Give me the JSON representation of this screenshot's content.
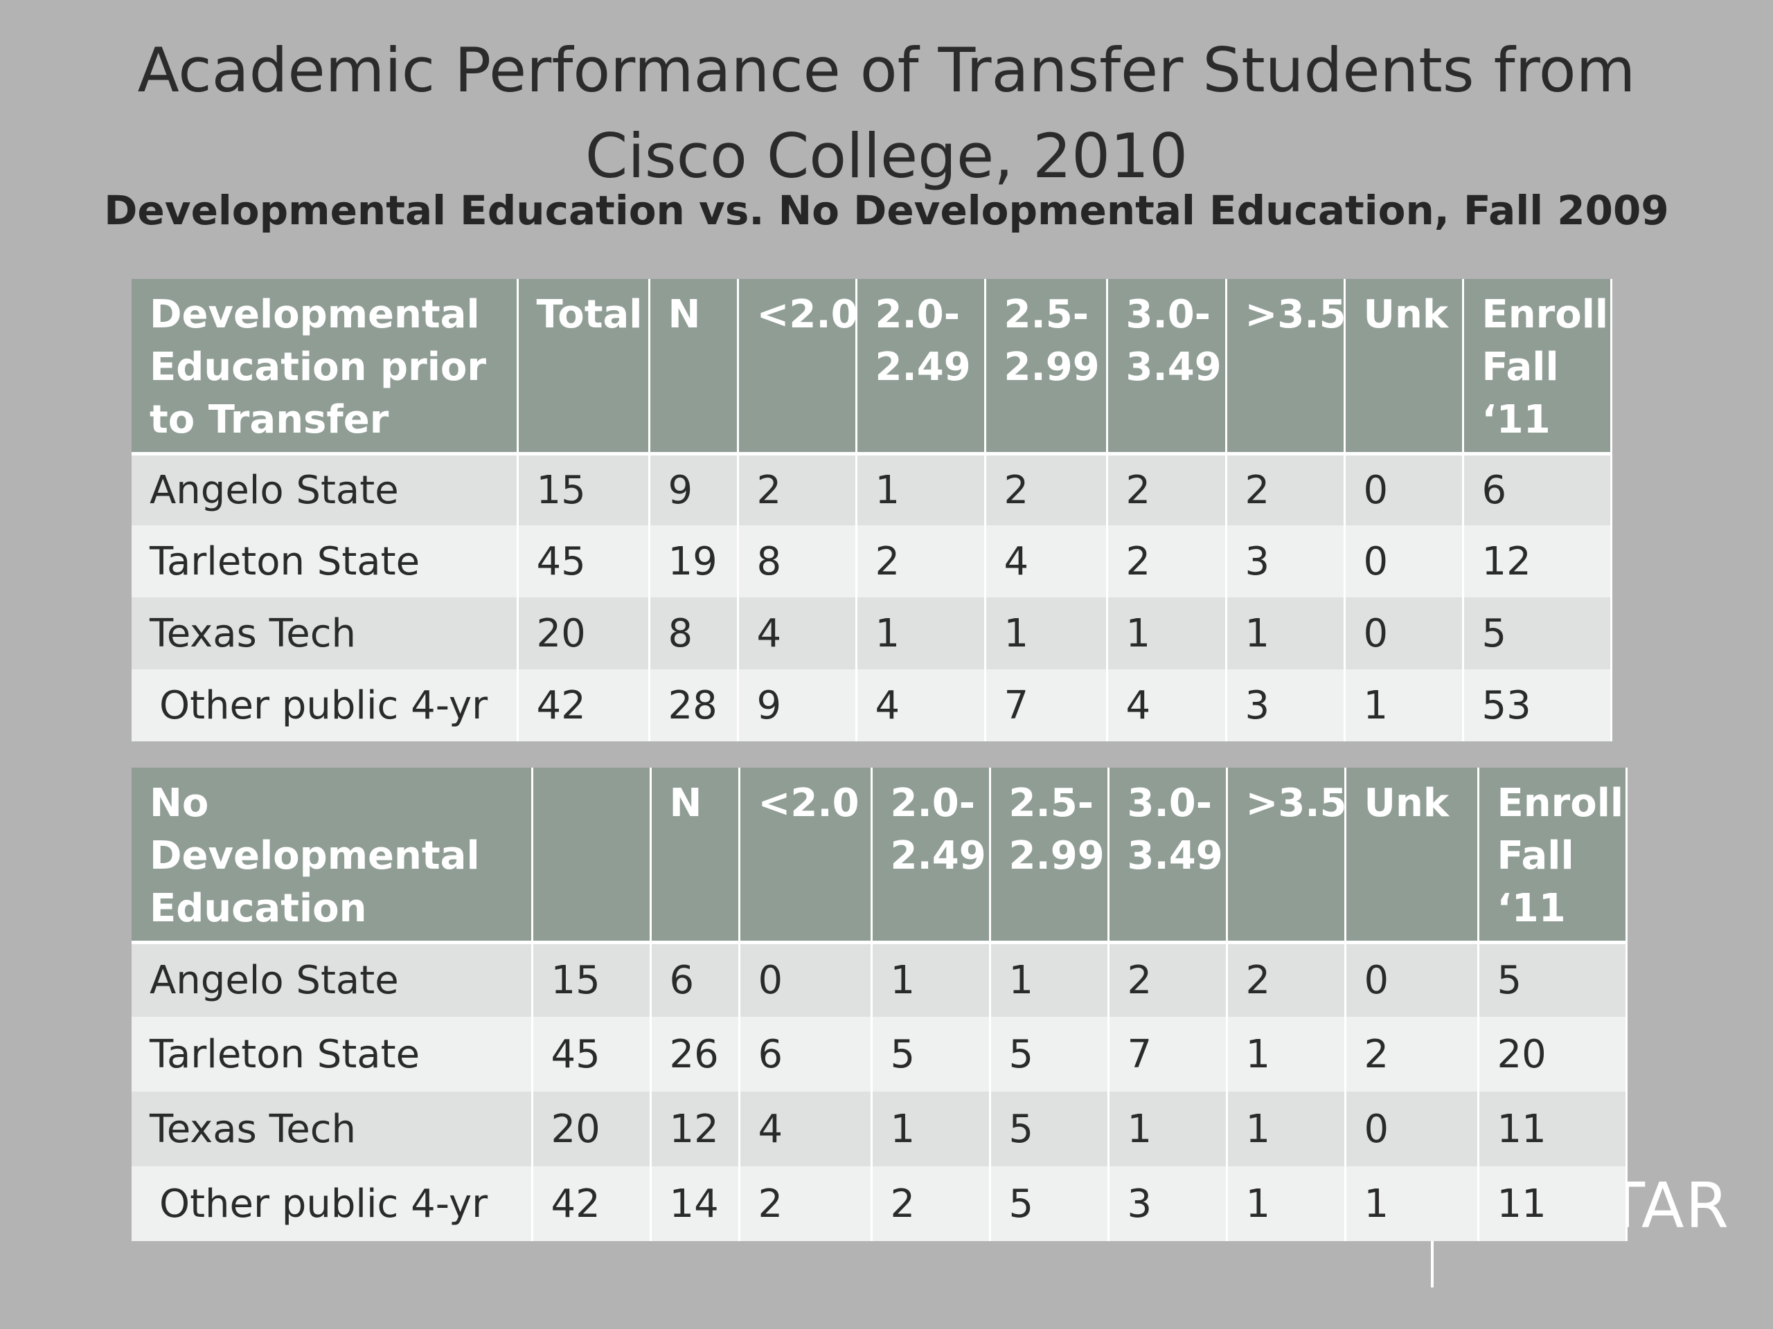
{
  "title_line1": "Academic Performance of Transfer Students from",
  "title_line2": "Cisco College, 2010",
  "subtitle": "Developmental Education vs. No Developmental Education, Fall 2009",
  "background_text": "TAR",
  "table1": {
    "headers": [
      "Developmental Education prior to Transfer",
      "Total",
      "N",
      "<2.0",
      "2.0-2.49",
      "2.5-2.99",
      "3.0-3.49",
      ">3.5",
      "Unk",
      "Enroll Fall ‘11"
    ],
    "rows": [
      [
        "Angelo State",
        "15",
        "9",
        "2",
        "1",
        "2",
        "2",
        "2",
        "0",
        "6"
      ],
      [
        "Tarleton State",
        "45",
        "19",
        "8",
        "2",
        "4",
        "2",
        "3",
        "0",
        "12"
      ],
      [
        "Texas Tech",
        "20",
        "8",
        "4",
        "1",
        "1",
        "1",
        "1",
        "0",
        "5"
      ],
      [
        "Other public 4-yr",
        "42",
        "28",
        "9",
        "4",
        "7",
        "4",
        "3",
        "1",
        "53"
      ]
    ]
  },
  "table2": {
    "headers": [
      "No Developmental Education",
      "",
      "N",
      "<2.0",
      "2.0-2.49",
      "2.5-2.99",
      "3.0-3.49",
      ">3.5",
      "Unk",
      "Enroll Fall ‘11"
    ],
    "rows": [
      [
        "Angelo State",
        "15",
        "6",
        "0",
        "1",
        "1",
        "2",
        "2",
        "0",
        "5"
      ],
      [
        "Tarleton State",
        "45",
        "26",
        "6",
        "5",
        "5",
        "7",
        "1",
        "2",
        "20"
      ],
      [
        "Texas Tech",
        "20",
        "12",
        "4",
        "1",
        "5",
        "1",
        "1",
        "0",
        "11"
      ],
      [
        "Other public 4-yr",
        "42",
        "14",
        "2",
        "2",
        "5",
        "3",
        "1",
        "1",
        "11"
      ]
    ]
  }
}
